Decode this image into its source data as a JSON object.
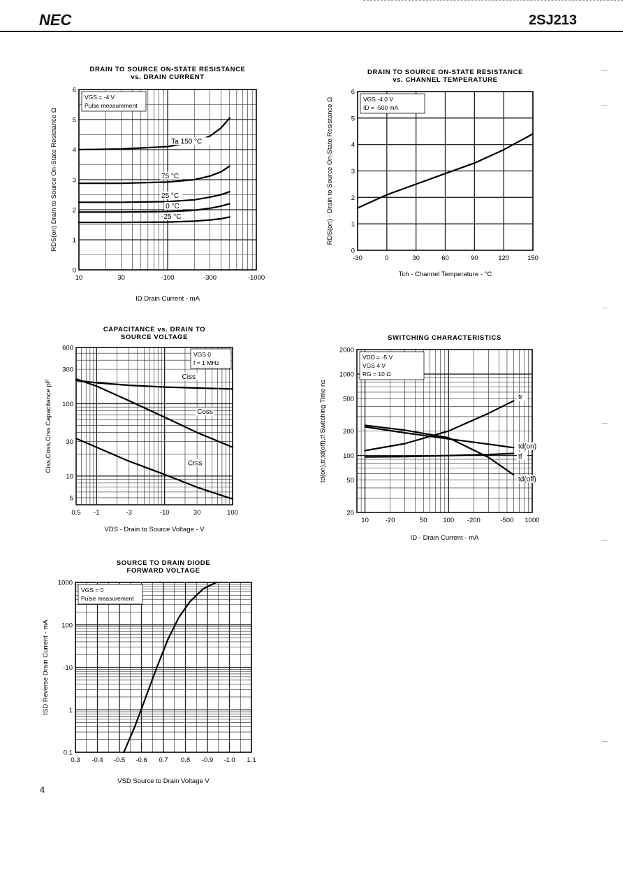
{
  "header": {
    "logo": "NEC",
    "part_number": "2SJ213"
  },
  "page_number": "4",
  "chart_data": [
    {
      "id": "rds-vs-id",
      "type": "line",
      "title": [
        "DRAIN TO SOURCE ON-STATE RESISTANCE",
        "vs. DRAIN CURRENT"
      ],
      "xlabel": "ID  Drain Current - mA",
      "ylabel": "RDS(on)  Drain to Source On-State Resistance  Ω",
      "xscale": "log",
      "yscale": "linear",
      "xlim": [
        10,
        1000
      ],
      "ylim": [
        0,
        6
      ],
      "xticks": [
        10,
        30,
        100,
        300,
        1000
      ],
      "xtick_labels": [
        "10",
        "30",
        "-100",
        "-300",
        "-1000"
      ],
      "yticks": [
        0,
        1,
        2,
        3,
        4,
        5,
        6
      ],
      "ytick_labels": [
        "0",
        "1",
        "2",
        "3",
        "4",
        "5",
        "6"
      ],
      "notes": [
        "VGS = -4 V",
        "Pulse measurement"
      ],
      "series": [
        {
          "label": "Ta  150 °C",
          "label_at": [
            110,
            4.2
          ],
          "x": [
            10,
            30,
            100,
            200,
            300,
            400,
            500
          ],
          "y": [
            4.0,
            4.02,
            4.1,
            4.25,
            4.45,
            4.72,
            5.05
          ]
        },
        {
          "label": "75 °C",
          "label_at": [
            85,
            3.05
          ],
          "x": [
            10,
            30,
            100,
            200,
            300,
            400,
            500
          ],
          "y": [
            2.88,
            2.88,
            2.92,
            3.0,
            3.12,
            3.26,
            3.45
          ]
        },
        {
          "label": "25 °C",
          "label_at": [
            85,
            2.4
          ],
          "x": [
            10,
            30,
            100,
            200,
            300,
            400,
            500
          ],
          "y": [
            2.25,
            2.25,
            2.27,
            2.33,
            2.42,
            2.5,
            2.6
          ]
        },
        {
          "label": "0 °C",
          "label_at": [
            95,
            2.05
          ],
          "x": [
            10,
            30,
            100,
            200,
            300,
            400,
            500
          ],
          "y": [
            1.92,
            1.92,
            1.94,
            1.98,
            2.05,
            2.12,
            2.2
          ]
        },
        {
          "label": "-25 °C",
          "label_at": [
            85,
            1.7
          ],
          "x": [
            10,
            30,
            100,
            200,
            300,
            400,
            500
          ],
          "y": [
            1.58,
            1.58,
            1.59,
            1.62,
            1.66,
            1.7,
            1.76
          ]
        }
      ]
    },
    {
      "id": "rds-vs-tch",
      "type": "line",
      "title": [
        "DRAIN TO SOURCE ON-STATE RESISTANCE",
        "vs. CHANNEL TEMPERATURE"
      ],
      "xlabel": "Tch - Channel Temperature - °C",
      "ylabel": "RDS(on) - Drain to Source On-State Resistance  Ω",
      "xscale": "linear",
      "yscale": "linear",
      "xlim": [
        -30,
        150
      ],
      "ylim": [
        0,
        6
      ],
      "xticks": [
        -30,
        0,
        30,
        60,
        90,
        120,
        150
      ],
      "xtick_labels": [
        "-30",
        "0",
        "30",
        "60",
        "90",
        "120",
        "150"
      ],
      "yticks": [
        0,
        1,
        2,
        3,
        4,
        5,
        6
      ],
      "ytick_labels": [
        "0",
        "1",
        "2",
        "3",
        "4",
        "5",
        "6"
      ],
      "notes": [
        "VGS -4.0 V",
        "ID = -500 mA"
      ],
      "series": [
        {
          "label": "",
          "x": [
            -30,
            0,
            30,
            60,
            90,
            120,
            150
          ],
          "y": [
            1.6,
            2.1,
            2.5,
            2.9,
            3.3,
            3.8,
            4.4
          ]
        }
      ]
    },
    {
      "id": "cap-vs-vds",
      "type": "line",
      "title": [
        "CAPACITANCE vs. DRAIN TO",
        "SOURCE VOLTAGE"
      ],
      "xlabel": "VDS - Drain to Source Voltage - V",
      "ylabel": "Ciss,Coss,Crss  Capacitance  pF",
      "xscale": "log",
      "yscale": "log",
      "xlim": [
        0.5,
        100
      ],
      "ylim": [
        4,
        600
      ],
      "xticks": [
        0.5,
        1,
        3,
        10,
        30,
        100
      ],
      "xtick_labels": [
        "0.5",
        "-1",
        "-3",
        "-10",
        "30",
        "100"
      ],
      "yticks": [
        5,
        10,
        30,
        100,
        300,
        600
      ],
      "ytick_labels": [
        "5",
        "10",
        "30",
        "100",
        "300",
        "600"
      ],
      "notes": [
        "VGS  0",
        "f = 1 MHz"
      ],
      "series": [
        {
          "label": "Ciss",
          "label_at": [
            18,
            220
          ],
          "x": [
            0.5,
            1,
            3,
            10,
            30,
            100
          ],
          "y": [
            210,
            195,
            180,
            170,
            165,
            160
          ]
        },
        {
          "label": "Coss",
          "label_at": [
            30,
            72
          ],
          "x": [
            0.5,
            1,
            3,
            10,
            30,
            100
          ],
          "y": [
            220,
            175,
            110,
            65,
            40,
            25
          ]
        },
        {
          "label": "Crss",
          "label_at": [
            22,
            14
          ],
          "x": [
            0.5,
            1,
            3,
            10,
            30,
            100
          ],
          "y": [
            33,
            25,
            16,
            10.5,
            7,
            4.8
          ]
        }
      ]
    },
    {
      "id": "switching",
      "type": "line",
      "title": [
        "SWITCHING CHARACTERISTICS"
      ],
      "xlabel": "ID - Drain Current - mA",
      "ylabel": "td(on),tr,td(off),tf   Switching Time  ns",
      "xscale": "log",
      "yscale": "log",
      "xlim": [
        8,
        1000
      ],
      "ylim": [
        20,
        2000
      ],
      "xticks": [
        10,
        20,
        50,
        100,
        200,
        500,
        1000
      ],
      "xtick_labels": [
        "10",
        "-20",
        "50",
        "100",
        "-200",
        "-500",
        "1000"
      ],
      "yticks": [
        20,
        50,
        100,
        200,
        500,
        1000,
        2000
      ],
      "ytick_labels": [
        "20",
        "50",
        "100",
        "200",
        "500",
        "1000",
        "2000"
      ],
      "notes": [
        "VDD = -5 V",
        "VGS    4 V",
        "RG = 10 Ω"
      ],
      "series": [
        {
          "label": "tr",
          "label_at": [
            680,
            490
          ],
          "x": [
            10,
            30,
            100,
            300,
            600
          ],
          "y": [
            115,
            140,
            200,
            330,
            470
          ]
        },
        {
          "label": "td(on)",
          "label_at": [
            680,
            122
          ],
          "x": [
            10,
            30,
            100,
            300,
            600
          ],
          "y": [
            225,
            190,
            160,
            138,
            125
          ]
        },
        {
          "label": "tf",
          "label_at": [
            680,
            92
          ],
          "x": [
            10,
            30,
            100,
            300,
            600
          ],
          "y": [
            96,
            97,
            100,
            103,
            106
          ]
        },
        {
          "label": "td(off)",
          "label_at": [
            680,
            48
          ],
          "x": [
            10,
            30,
            100,
            300,
            600
          ],
          "y": [
            235,
            205,
            165,
            95,
            58
          ]
        }
      ]
    },
    {
      "id": "diode-fwd",
      "type": "line",
      "title": [
        "SOURCE TO DRAIN DIODE",
        "FORWARD VOLTAGE"
      ],
      "xlabel": "VSD  Source to Drain Voltage  V",
      "ylabel": "ISD  Reverse Drain Current - mA",
      "xscale": "linear",
      "yscale": "log",
      "xlim": [
        0.3,
        1.1
      ],
      "ylim": [
        0.1,
        1000
      ],
      "xticks": [
        0.3,
        0.4,
        0.5,
        0.6,
        0.7,
        0.8,
        0.9,
        1.0,
        1.1
      ],
      "xtick_labels": [
        "0.3",
        "-0.4",
        "-0.5",
        "-0.6",
        "0.7",
        "0.8",
        "-0.9",
        "-1.0",
        "1.1"
      ],
      "yticks": [
        0.1,
        1,
        10,
        100,
        1000
      ],
      "ytick_labels": [
        "0.1",
        "1",
        "-10",
        "100",
        "1000"
      ],
      "notes": [
        "VGS = 0",
        "Pulse measurement"
      ],
      "series": [
        {
          "label": "",
          "x": [
            0.52,
            0.57,
            0.62,
            0.67,
            0.72,
            0.77,
            0.82,
            0.88,
            0.94
          ],
          "y": [
            0.1,
            0.4,
            2,
            10,
            45,
            150,
            350,
            700,
            1000
          ]
        }
      ]
    }
  ]
}
